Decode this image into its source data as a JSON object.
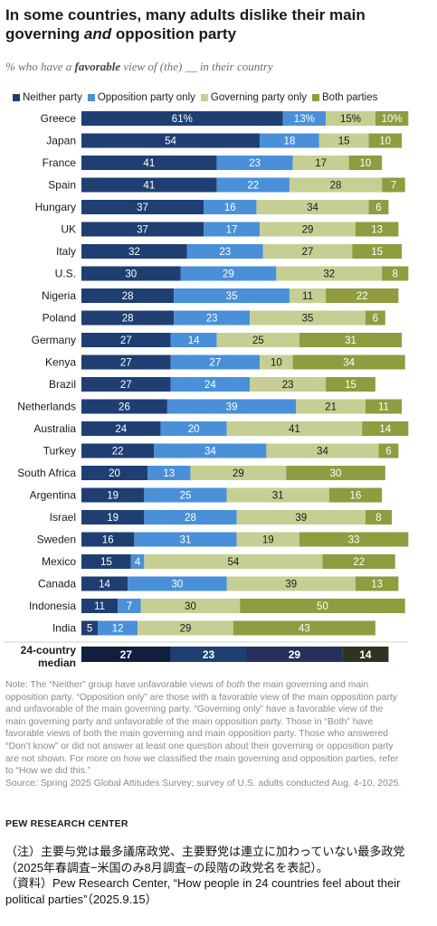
{
  "header": {
    "title_part1": "In some countries, many adults dislike their main governing ",
    "title_emph": "and",
    "title_part2": " opposition party",
    "subtitle_part1": "% who have a ",
    "subtitle_bold": "favorable",
    "subtitle_part2": " view of (the) __ in their country"
  },
  "legend": [
    {
      "label": "Neither party",
      "color": "#1f3f73"
    },
    {
      "label": "Opposition party only",
      "color": "#4a90d9"
    },
    {
      "label": "Governing party only",
      "color": "#c5cf93"
    },
    {
      "label": "Both parties",
      "color": "#8f9c40"
    }
  ],
  "chart_data": {
    "type": "bar",
    "orientation": "horizontal",
    "stacked": true,
    "categories": [
      "Greece",
      "Japan",
      "France",
      "Spain",
      "Hungary",
      "UK",
      "Italy",
      "U.S.",
      "Nigeria",
      "Poland",
      "Germany",
      "Kenya",
      "Brazil",
      "Netherlands",
      "Australia",
      "Turkey",
      "South Africa",
      "Argentina",
      "Israel",
      "Sweden",
      "Mexico",
      "Canada",
      "Indonesia",
      "India"
    ],
    "series": [
      {
        "name": "Neither party",
        "color": "#1f3f73",
        "values": [
          61,
          54,
          41,
          41,
          37,
          37,
          32,
          30,
          28,
          28,
          27,
          27,
          27,
          26,
          24,
          22,
          20,
          19,
          19,
          16,
          15,
          14,
          11,
          5
        ],
        "labels": [
          "61%",
          "54",
          "41",
          "41",
          "37",
          "37",
          "32",
          "30",
          "28",
          "28",
          "27",
          "27",
          "27",
          "26",
          "24",
          "22",
          "20",
          "19",
          "19",
          "16",
          "15",
          "14",
          "11",
          "5"
        ]
      },
      {
        "name": "Opposition party only",
        "color": "#4a90d9",
        "values": [
          13,
          18,
          23,
          22,
          16,
          17,
          23,
          29,
          35,
          23,
          14,
          27,
          24,
          39,
          20,
          34,
          13,
          25,
          28,
          31,
          4,
          30,
          7,
          12
        ],
        "labels": [
          "13%",
          "18",
          "23",
          "22",
          "16",
          "17",
          "23",
          "29",
          "35",
          "23",
          "14",
          "27",
          "24",
          "39",
          "20",
          "34",
          "13",
          "25",
          "28",
          "31",
          "4",
          "30",
          "7",
          "12"
        ]
      },
      {
        "name": "Governing party only",
        "color": "#c5cf93",
        "values": [
          15,
          15,
          17,
          28,
          34,
          29,
          27,
          32,
          11,
          35,
          25,
          10,
          23,
          21,
          41,
          34,
          29,
          31,
          39,
          19,
          54,
          39,
          30,
          29
        ],
        "labels": [
          "15%",
          "15",
          "17",
          "28",
          "34",
          "29",
          "27",
          "32",
          "11",
          "35",
          "25",
          "10",
          "23",
          "21",
          "41",
          "34",
          "29",
          "31",
          "39",
          "19",
          "54",
          "39",
          "30",
          "29"
        ]
      },
      {
        "name": "Both parties",
        "color": "#8f9c40",
        "values": [
          10,
          10,
          10,
          7,
          6,
          13,
          15,
          8,
          22,
          6,
          31,
          34,
          15,
          11,
          14,
          6,
          30,
          16,
          8,
          33,
          22,
          13,
          50,
          43
        ],
        "labels": [
          "10%",
          "10",
          "10",
          "7",
          "6",
          "13",
          "15",
          "8",
          "22",
          "6",
          "31",
          "34",
          "15",
          "11",
          "14",
          "6",
          "30",
          "16",
          "8",
          "33",
          "22",
          "13",
          "50",
          "43"
        ]
      }
    ],
    "median": {
      "label_line1": "24-country",
      "label_line2": "median",
      "values": [
        27,
        23,
        29,
        14
      ],
      "colors": [
        "#0f1f3d",
        "#1f3f73",
        "#24305a",
        "#2f3320"
      ]
    },
    "xlim": [
      0,
      100
    ]
  },
  "footer": {
    "note_part1": "Note: The “Neither” group have unfavorable views of ",
    "note_emph": "both",
    "note_part2": " the main governing and main opposition party. “Opposition only” are those with a favorable view of the main opposition party and unfavorable of the main governing party. “Governing only” have a favorable view of the main governing party and unfavorable of the main opposition party. Those in “Both” have favorable views of both the main governing and main opposition party. Those who answered “Don’t know” or did not answer at least one question about their governing or opposition party are not shown. For more on how we classified the main governing and opposition parties, refer to “How we did this.”",
    "source": "Source: Spring 2025 Global Attitudes Survey; survey of U.S. adults conducted Aug. 4-10, 2025.",
    "brand": "PEW RESEARCH CENTER",
    "jp_note": "（注）主要与党は最多議席政党、主要野党は連立に加わっていない最多政党（2025年春調査−米国のみ8月調査−の段階の政党名を表記）。",
    "jp_source": "（資料）Pew Research Center, “How people in 24 countries feel about their political parties”（2025.9.15）"
  }
}
